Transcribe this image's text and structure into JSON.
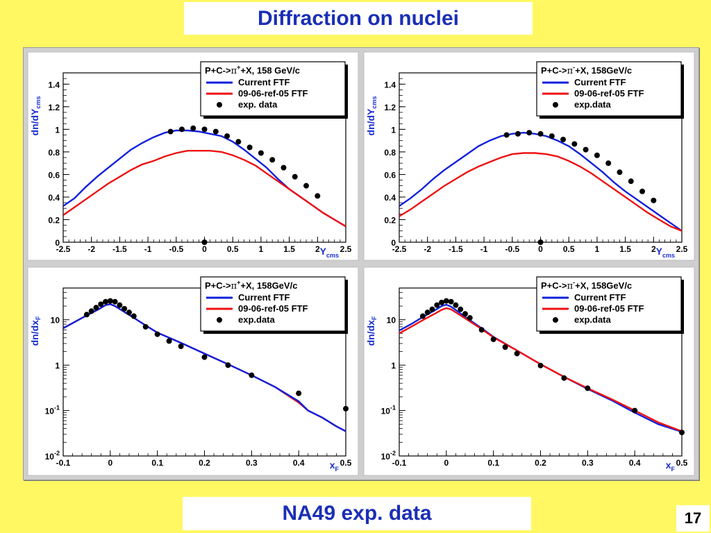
{
  "header": {
    "title": "Diffraction on nuclei"
  },
  "footer": {
    "label": "NA49 exp. data",
    "page_number": "17"
  },
  "chart_data": [
    {
      "type": "line",
      "panel": "top-left",
      "ylabel_main": "dn/dY",
      "ylabel_sub": "cms",
      "xlabel_main": "Y",
      "xlabel_sub": "cms",
      "xlim": [
        -2.5,
        2.5
      ],
      "ylim": [
        0,
        1.5
      ],
      "yscale": "linear",
      "xticks": [
        -2.5,
        -2,
        -1.5,
        -1,
        -0.5,
        0,
        0.5,
        1,
        1.5,
        2,
        2.5
      ],
      "xtick_labels": [
        "-2.5",
        "-2",
        "-1.5",
        "-1",
        "-0.5",
        "0",
        "0.5",
        "1",
        "1.5",
        "2",
        "2.5"
      ],
      "yticks": [
        0,
        0.2,
        0.4,
        0.6,
        0.8,
        1,
        1.2,
        1.4
      ],
      "ytick_labels": [
        "0",
        "0.2",
        "0.4",
        "0.6",
        "0.8",
        "1",
        "1.2",
        "1.4"
      ],
      "legend": {
        "title_pre": "P+C->",
        "title_pi": "π",
        "title_charge": "+",
        "title_post": "+X, 158 GeV/c",
        "position": "top-right",
        "entries": [
          "Current FTF",
          "09-06-ref-05 FTF",
          "exp. data"
        ]
      },
      "series": [
        {
          "name": "Current FTF",
          "color": "#1020dd",
          "x": [
            -2.5,
            -2.3,
            -2.1,
            -1.9,
            -1.7,
            -1.5,
            -1.3,
            -1.1,
            -0.9,
            -0.7,
            -0.5,
            -0.3,
            -0.1,
            0.1,
            0.3,
            0.5,
            0.7,
            0.9,
            1.1,
            1.3,
            1.5,
            1.7,
            1.9,
            2.1,
            2.3,
            2.5
          ],
          "y": [
            0.32,
            0.39,
            0.49,
            0.58,
            0.66,
            0.74,
            0.82,
            0.88,
            0.93,
            0.97,
            0.99,
            0.99,
            0.98,
            0.96,
            0.94,
            0.89,
            0.82,
            0.74,
            0.66,
            0.56,
            0.47,
            0.4,
            0.33,
            0.26,
            0.2,
            0.14
          ]
        },
        {
          "name": "09-06-ref-05 FTF",
          "color": "#ee1111",
          "x": [
            -2.5,
            -2.3,
            -2.1,
            -1.9,
            -1.7,
            -1.5,
            -1.3,
            -1.1,
            -0.9,
            -0.7,
            -0.5,
            -0.3,
            -0.1,
            0.1,
            0.3,
            0.5,
            0.7,
            0.9,
            1.1,
            1.3,
            1.5,
            1.7,
            1.9,
            2.1,
            2.3,
            2.5
          ],
          "y": [
            0.24,
            0.31,
            0.38,
            0.45,
            0.52,
            0.58,
            0.64,
            0.69,
            0.72,
            0.76,
            0.79,
            0.81,
            0.81,
            0.81,
            0.8,
            0.77,
            0.73,
            0.68,
            0.61,
            0.54,
            0.47,
            0.4,
            0.33,
            0.26,
            0.2,
            0.14
          ]
        },
        {
          "name": "exp. data",
          "color": "#000000",
          "marker": true,
          "x": [
            -0.6,
            -0.4,
            -0.2,
            0,
            0.2,
            0.4,
            0.6,
            0.8,
            1.0,
            1.2,
            1.4,
            1.6,
            1.8,
            2.0,
            0
          ],
          "y": [
            0.98,
            1.0,
            1.01,
            1.0,
            0.98,
            0.94,
            0.89,
            0.84,
            0.79,
            0.73,
            0.66,
            0.58,
            0.5,
            0.41,
            0.0
          ]
        }
      ]
    },
    {
      "type": "line",
      "panel": "top-right",
      "ylabel_main": "dn/dY",
      "ylabel_sub": "cms",
      "xlabel_main": "Y",
      "xlabel_sub": "cms",
      "xlim": [
        -2.5,
        2.5
      ],
      "ylim": [
        0,
        1.5
      ],
      "yscale": "linear",
      "xticks": [
        -2.5,
        -2,
        -1.5,
        -1,
        -0.5,
        0,
        0.5,
        1,
        1.5,
        2,
        2.5
      ],
      "xtick_labels": [
        "-2.5",
        "-2",
        "-1.5",
        "-1",
        "-0.5",
        "0",
        "0.5",
        "1",
        "1.5",
        "2",
        "2.5"
      ],
      "yticks": [
        0,
        0.2,
        0.4,
        0.6,
        0.8,
        1,
        1.2,
        1.4
      ],
      "ytick_labels": [
        "0",
        "0.2",
        "0.4",
        "0.6",
        "0.8",
        "1",
        "1.2",
        "1.4"
      ],
      "legend": {
        "title_pre": "P+C->",
        "title_pi": "π",
        "title_charge": "-",
        "title_post": "+X, 158GeV/c",
        "position": "top-right",
        "entries": [
          "Current FTF",
          "09-06-ref-05 FTF",
          "exp.data"
        ]
      },
      "series": [
        {
          "name": "Current FTF",
          "color": "#1020dd",
          "x": [
            -2.5,
            -2.3,
            -2.1,
            -1.9,
            -1.7,
            -1.5,
            -1.3,
            -1.1,
            -0.9,
            -0.7,
            -0.5,
            -0.3,
            -0.1,
            0.1,
            0.3,
            0.5,
            0.7,
            0.9,
            1.1,
            1.3,
            1.5,
            1.7,
            1.9,
            2.1,
            2.3,
            2.5
          ],
          "y": [
            0.32,
            0.39,
            0.47,
            0.56,
            0.64,
            0.71,
            0.78,
            0.85,
            0.9,
            0.94,
            0.96,
            0.97,
            0.96,
            0.94,
            0.9,
            0.85,
            0.78,
            0.7,
            0.62,
            0.53,
            0.45,
            0.38,
            0.31,
            0.24,
            0.17,
            0.1
          ]
        },
        {
          "name": "09-06-ref-05 FTF",
          "color": "#ee1111",
          "x": [
            -2.5,
            -2.3,
            -2.1,
            -1.9,
            -1.7,
            -1.5,
            -1.3,
            -1.1,
            -0.9,
            -0.7,
            -0.5,
            -0.3,
            -0.1,
            0.1,
            0.3,
            0.5,
            0.7,
            0.9,
            1.1,
            1.3,
            1.5,
            1.7,
            1.9,
            2.1,
            2.3,
            2.5
          ],
          "y": [
            0.23,
            0.29,
            0.36,
            0.43,
            0.5,
            0.56,
            0.62,
            0.67,
            0.71,
            0.75,
            0.78,
            0.79,
            0.79,
            0.78,
            0.76,
            0.72,
            0.67,
            0.61,
            0.54,
            0.47,
            0.4,
            0.33,
            0.26,
            0.2,
            0.14,
            0.1
          ]
        },
        {
          "name": "exp.data",
          "color": "#000000",
          "marker": true,
          "x": [
            -0.6,
            -0.4,
            -0.2,
            0,
            0.2,
            0.4,
            0.6,
            0.8,
            1.0,
            1.2,
            1.4,
            1.6,
            1.8,
            2.0,
            0
          ],
          "y": [
            0.95,
            0.96,
            0.97,
            0.96,
            0.94,
            0.91,
            0.87,
            0.82,
            0.77,
            0.7,
            0.62,
            0.54,
            0.45,
            0.37,
            0.0
          ]
        }
      ]
    },
    {
      "type": "line",
      "panel": "bottom-left",
      "ylabel_main": "dn/dx",
      "ylabel_sub": "F",
      "xlabel_main": "x",
      "xlabel_sub": "F",
      "xlim": [
        -0.1,
        0.5
      ],
      "ylim": [
        0.01,
        50
      ],
      "yscale": "log",
      "xticks": [
        -0.1,
        0,
        0.1,
        0.2,
        0.3,
        0.4,
        0.5
      ],
      "xtick_labels": [
        "-0.1",
        "0",
        "0.1",
        "0.2",
        "0.3",
        "0.4",
        "0.5"
      ],
      "yticks": [
        0.01,
        0.1,
        1,
        10
      ],
      "ytick_labels": [
        [
          "10",
          "-2"
        ],
        [
          "10",
          "-1"
        ],
        [
          "1",
          ""
        ],
        [
          "10",
          ""
        ]
      ],
      "legend": {
        "title_pre": "P+C->",
        "title_pi": "π",
        "title_charge": "+",
        "title_post": "+X, 158GeV/c",
        "position": "top-right",
        "entries": [
          "Current FTF",
          "09-06-ref-05 FTF",
          "exp.data"
        ]
      },
      "series": [
        {
          "name": "09-06-ref-05 FTF",
          "color": "#ee1111",
          "x": [
            -0.1,
            -0.075,
            -0.05,
            -0.025,
            -0.01,
            0,
            0.01,
            0.025,
            0.05,
            0.075,
            0.1,
            0.15,
            0.2,
            0.25,
            0.3,
            0.35,
            0.4,
            0.42,
            0.45,
            0.48,
            0.5
          ],
          "y": [
            6.5,
            9,
            12.5,
            17,
            21,
            22,
            20,
            16,
            11,
            7.5,
            5.2,
            3.1,
            1.8,
            1.05,
            0.6,
            0.33,
            0.15,
            0.1,
            0.07,
            0.045,
            0.035
          ]
        },
        {
          "name": "Current FTF",
          "color": "#1020dd",
          "x": [
            -0.1,
            -0.075,
            -0.05,
            -0.025,
            -0.01,
            0,
            0.01,
            0.025,
            0.05,
            0.075,
            0.1,
            0.15,
            0.2,
            0.25,
            0.3,
            0.35,
            0.4,
            0.42,
            0.45,
            0.48,
            0.5
          ],
          "y": [
            6.5,
            9,
            12.5,
            17,
            21,
            22,
            20,
            16,
            11,
            7.5,
            5.2,
            3.1,
            1.8,
            1.05,
            0.6,
            0.33,
            0.16,
            0.1,
            0.07,
            0.045,
            0.035
          ]
        },
        {
          "name": "exp.data",
          "color": "#000000",
          "marker": true,
          "x": [
            -0.05,
            -0.04,
            -0.03,
            -0.02,
            -0.01,
            0,
            0.01,
            0.02,
            0.03,
            0.04,
            0.05,
            0.075,
            0.1,
            0.125,
            0.15,
            0.2,
            0.25,
            0.3,
            0.4,
            0.5
          ],
          "y": [
            13,
            15.5,
            18.5,
            22,
            25,
            26,
            25,
            21,
            17.5,
            14.5,
            12,
            7,
            4.8,
            3.4,
            2.6,
            1.5,
            1.0,
            0.6,
            0.24,
            0.11
          ]
        }
      ]
    },
    {
      "type": "line",
      "panel": "bottom-right",
      "ylabel_main": "dn/dx",
      "ylabel_sub": "F",
      "xlabel_main": "x",
      "xlabel_sub": "F",
      "xlim": [
        -0.1,
        0.5
      ],
      "ylim": [
        0.01,
        50
      ],
      "yscale": "log",
      "xticks": [
        -0.1,
        0,
        0.1,
        0.2,
        0.3,
        0.4,
        0.5
      ],
      "xtick_labels": [
        "-0.1",
        "0",
        "0.1",
        "0.2",
        "0.3",
        "0.4",
        "0.5"
      ],
      "yticks": [
        0.01,
        0.1,
        1,
        10
      ],
      "ytick_labels": [
        [
          "10",
          "-2"
        ],
        [
          "10",
          "-1"
        ],
        [
          "1",
          ""
        ],
        [
          "10",
          ""
        ]
      ],
      "legend": {
        "title_pre": "P+C->",
        "title_pi": "π",
        "title_charge": "-",
        "title_post": "+X, 158GeV/c",
        "position": "top-right",
        "entries": [
          "Current FTF",
          "09-06-ref-05 FTF",
          "exp.data"
        ]
      },
      "series": [
        {
          "name": "Current FTF",
          "color": "#1020dd",
          "x": [
            -0.1,
            -0.075,
            -0.05,
            -0.025,
            -0.01,
            0,
            0.01,
            0.025,
            0.05,
            0.075,
            0.1,
            0.15,
            0.2,
            0.25,
            0.3,
            0.35,
            0.4,
            0.45,
            0.5
          ],
          "y": [
            5.8,
            8,
            11.5,
            16,
            20,
            21.5,
            19.5,
            15,
            9.8,
            6.5,
            4.2,
            2.1,
            1.05,
            0.55,
            0.3,
            0.17,
            0.09,
            0.05,
            0.034
          ]
        },
        {
          "name": "09-06-ref-05 FTF",
          "color": "#ee1111",
          "x": [
            -0.1,
            -0.075,
            -0.05,
            -0.025,
            -0.01,
            0,
            0.01,
            0.025,
            0.05,
            0.075,
            0.1,
            0.15,
            0.2,
            0.25,
            0.3,
            0.35,
            0.4,
            0.45,
            0.5
          ],
          "y": [
            5.0,
            7.0,
            9.8,
            13.5,
            16.5,
            18,
            17,
            13.5,
            9.2,
            6.2,
            4.1,
            2.1,
            1.05,
            0.55,
            0.31,
            0.18,
            0.1,
            0.055,
            0.035
          ]
        },
        {
          "name": "exp.data",
          "color": "#000000",
          "marker": true,
          "x": [
            -0.05,
            -0.04,
            -0.03,
            -0.02,
            -0.01,
            0,
            0.01,
            0.02,
            0.03,
            0.04,
            0.05,
            0.075,
            0.1,
            0.125,
            0.15,
            0.2,
            0.25,
            0.3,
            0.4,
            0.5
          ],
          "y": [
            12,
            14.5,
            17,
            21,
            24,
            26,
            25,
            21,
            17,
            13.5,
            11,
            6,
            3.7,
            2.5,
            1.8,
            0.98,
            0.52,
            0.31,
            0.1,
            0.033
          ]
        }
      ]
    }
  ]
}
